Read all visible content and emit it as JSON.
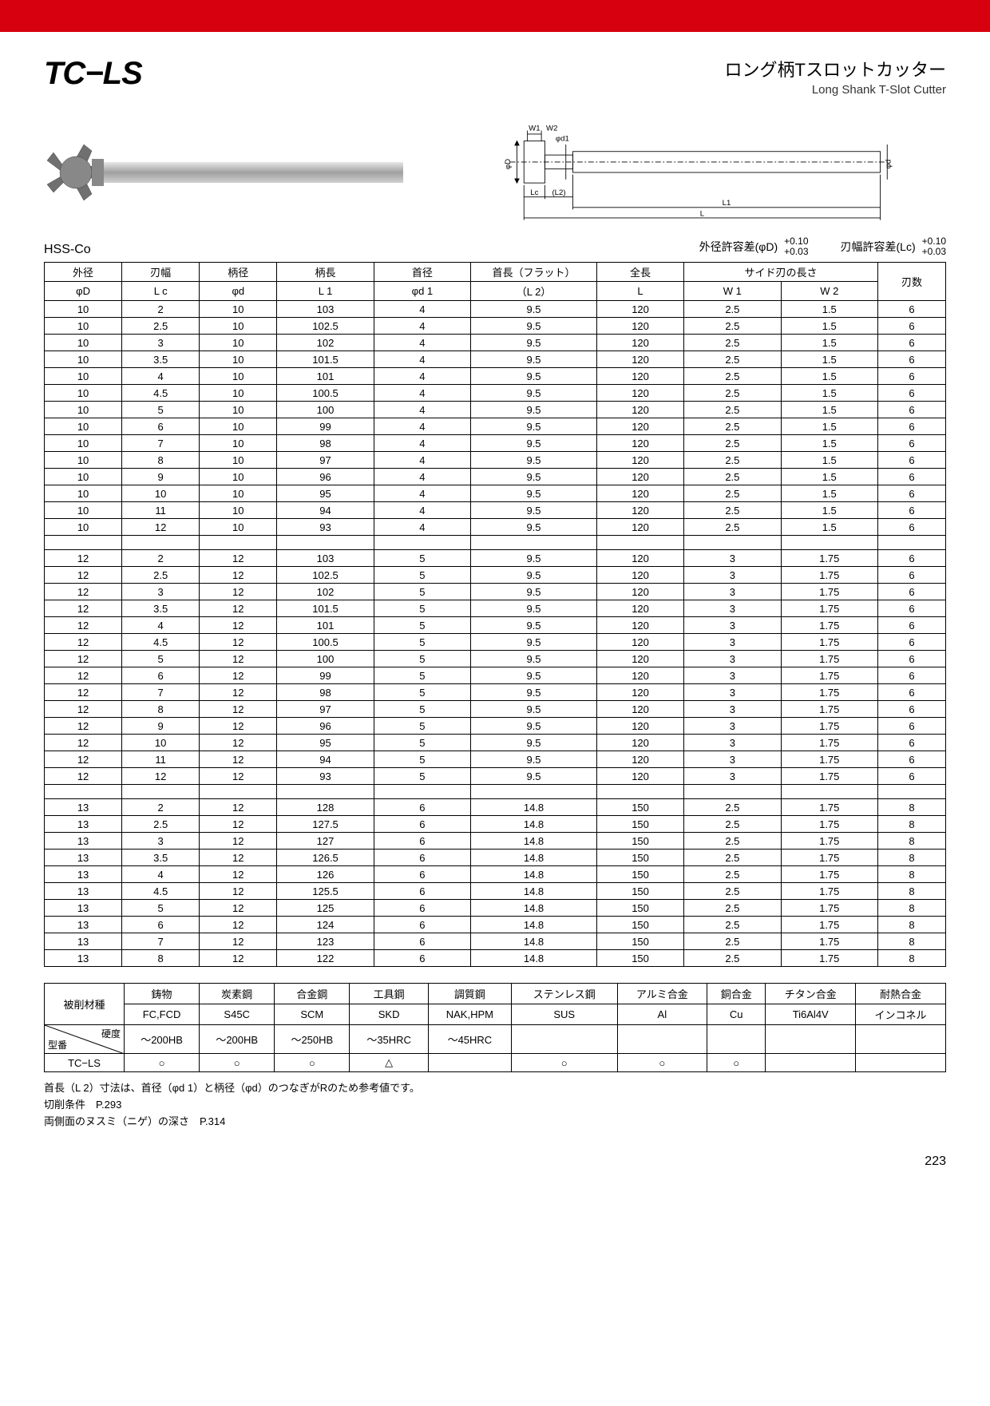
{
  "header": {
    "product_code": "TC−LS",
    "name_jp": "ロング柄Tスロットカッター",
    "name_en": "Long Shank T-Slot Cutter"
  },
  "material_label": "HSS-Co",
  "tolerances": {
    "od_label": "外径許容差(φD)",
    "od_upper": "+0.10",
    "od_lower": "+0.03",
    "lc_label": "刃幅許容差(Lc)",
    "lc_upper": "+0.10",
    "lc_lower": "+0.03"
  },
  "spec_table": {
    "header_row1": [
      "外径",
      "刃幅",
      "柄径",
      "柄長",
      "首径",
      "首長（フラット）",
      "全長",
      "サイド刃の長さ",
      "",
      "刃数"
    ],
    "header_row2": [
      "φD",
      "L c",
      "φd",
      "L 1",
      "φd 1",
      "（L 2）",
      "L",
      "W 1",
      "W 2",
      ""
    ],
    "rows": [
      [
        "10",
        "2",
        "10",
        "103",
        "4",
        "9.5",
        "120",
        "2.5",
        "1.5",
        "6"
      ],
      [
        "10",
        "2.5",
        "10",
        "102.5",
        "4",
        "9.5",
        "120",
        "2.5",
        "1.5",
        "6"
      ],
      [
        "10",
        "3",
        "10",
        "102",
        "4",
        "9.5",
        "120",
        "2.5",
        "1.5",
        "6"
      ],
      [
        "10",
        "3.5",
        "10",
        "101.5",
        "4",
        "9.5",
        "120",
        "2.5",
        "1.5",
        "6"
      ],
      [
        "10",
        "4",
        "10",
        "101",
        "4",
        "9.5",
        "120",
        "2.5",
        "1.5",
        "6"
      ],
      [
        "10",
        "4.5",
        "10",
        "100.5",
        "4",
        "9.5",
        "120",
        "2.5",
        "1.5",
        "6"
      ],
      [
        "10",
        "5",
        "10",
        "100",
        "4",
        "9.5",
        "120",
        "2.5",
        "1.5",
        "6"
      ],
      [
        "10",
        "6",
        "10",
        "99",
        "4",
        "9.5",
        "120",
        "2.5",
        "1.5",
        "6"
      ],
      [
        "10",
        "7",
        "10",
        "98",
        "4",
        "9.5",
        "120",
        "2.5",
        "1.5",
        "6"
      ],
      [
        "10",
        "8",
        "10",
        "97",
        "4",
        "9.5",
        "120",
        "2.5",
        "1.5",
        "6"
      ],
      [
        "10",
        "9",
        "10",
        "96",
        "4",
        "9.5",
        "120",
        "2.5",
        "1.5",
        "6"
      ],
      [
        "10",
        "10",
        "10",
        "95",
        "4",
        "9.5",
        "120",
        "2.5",
        "1.5",
        "6"
      ],
      [
        "10",
        "11",
        "10",
        "94",
        "4",
        "9.5",
        "120",
        "2.5",
        "1.5",
        "6"
      ],
      [
        "10",
        "12",
        "10",
        "93",
        "4",
        "9.5",
        "120",
        "2.5",
        "1.5",
        "6"
      ],
      [],
      [
        "12",
        "2",
        "12",
        "103",
        "5",
        "9.5",
        "120",
        "3",
        "1.75",
        "6"
      ],
      [
        "12",
        "2.5",
        "12",
        "102.5",
        "5",
        "9.5",
        "120",
        "3",
        "1.75",
        "6"
      ],
      [
        "12",
        "3",
        "12",
        "102",
        "5",
        "9.5",
        "120",
        "3",
        "1.75",
        "6"
      ],
      [
        "12",
        "3.5",
        "12",
        "101.5",
        "5",
        "9.5",
        "120",
        "3",
        "1.75",
        "6"
      ],
      [
        "12",
        "4",
        "12",
        "101",
        "5",
        "9.5",
        "120",
        "3",
        "1.75",
        "6"
      ],
      [
        "12",
        "4.5",
        "12",
        "100.5",
        "5",
        "9.5",
        "120",
        "3",
        "1.75",
        "6"
      ],
      [
        "12",
        "5",
        "12",
        "100",
        "5",
        "9.5",
        "120",
        "3",
        "1.75",
        "6"
      ],
      [
        "12",
        "6",
        "12",
        "99",
        "5",
        "9.5",
        "120",
        "3",
        "1.75",
        "6"
      ],
      [
        "12",
        "7",
        "12",
        "98",
        "5",
        "9.5",
        "120",
        "3",
        "1.75",
        "6"
      ],
      [
        "12",
        "8",
        "12",
        "97",
        "5",
        "9.5",
        "120",
        "3",
        "1.75",
        "6"
      ],
      [
        "12",
        "9",
        "12",
        "96",
        "5",
        "9.5",
        "120",
        "3",
        "1.75",
        "6"
      ],
      [
        "12",
        "10",
        "12",
        "95",
        "5",
        "9.5",
        "120",
        "3",
        "1.75",
        "6"
      ],
      [
        "12",
        "11",
        "12",
        "94",
        "5",
        "9.5",
        "120",
        "3",
        "1.75",
        "6"
      ],
      [
        "12",
        "12",
        "12",
        "93",
        "5",
        "9.5",
        "120",
        "3",
        "1.75",
        "6"
      ],
      [],
      [
        "13",
        "2",
        "12",
        "128",
        "6",
        "14.8",
        "150",
        "2.5",
        "1.75",
        "8"
      ],
      [
        "13",
        "2.5",
        "12",
        "127.5",
        "6",
        "14.8",
        "150",
        "2.5",
        "1.75",
        "8"
      ],
      [
        "13",
        "3",
        "12",
        "127",
        "6",
        "14.8",
        "150",
        "2.5",
        "1.75",
        "8"
      ],
      [
        "13",
        "3.5",
        "12",
        "126.5",
        "6",
        "14.8",
        "150",
        "2.5",
        "1.75",
        "8"
      ],
      [
        "13",
        "4",
        "12",
        "126",
        "6",
        "14.8",
        "150",
        "2.5",
        "1.75",
        "8"
      ],
      [
        "13",
        "4.5",
        "12",
        "125.5",
        "6",
        "14.8",
        "150",
        "2.5",
        "1.75",
        "8"
      ],
      [
        "13",
        "5",
        "12",
        "125",
        "6",
        "14.8",
        "150",
        "2.5",
        "1.75",
        "8"
      ],
      [
        "13",
        "6",
        "12",
        "124",
        "6",
        "14.8",
        "150",
        "2.5",
        "1.75",
        "8"
      ],
      [
        "13",
        "7",
        "12",
        "123",
        "6",
        "14.8",
        "150",
        "2.5",
        "1.75",
        "8"
      ],
      [
        "13",
        "8",
        "12",
        "122",
        "6",
        "14.8",
        "150",
        "2.5",
        "1.75",
        "8"
      ]
    ],
    "col_widths_pct": [
      8,
      8,
      8,
      10,
      10,
      13,
      9,
      10,
      10,
      7
    ]
  },
  "material_table": {
    "label": "被削材種",
    "hardness_label": "硬度",
    "model_label": "型番",
    "columns_jp": [
      "鋳物",
      "炭素鋼",
      "合金鋼",
      "工具鋼",
      "調質鋼",
      "ステンレス鋼",
      "アルミ合金",
      "銅合金",
      "チタン合金",
      "耐熱合金"
    ],
    "columns_sym": [
      "FC,FCD",
      "S45C",
      "SCM",
      "SKD",
      "NAK,HPM",
      "SUS",
      "Al",
      "Cu",
      "Ti6Al4V",
      "インコネル"
    ],
    "hardness_row": [
      "〜200HB",
      "〜200HB",
      "〜250HB",
      "〜35HRC",
      "〜45HRC",
      "",
      "",
      "",
      "",
      ""
    ],
    "model_name": "TC−LS",
    "marks": [
      "○",
      "○",
      "○",
      "△",
      "",
      "○",
      "○",
      "○",
      "",
      ""
    ]
  },
  "notes": [
    "首長（L 2）寸法は、首径（φd 1）と柄径（φd）のつなぎがRのため参考値です。",
    "切削条件　P.293",
    "両側面のヌスミ（ニゲ）の深さ　P.314"
  ],
  "page_number": "223",
  "colors": {
    "red": "#d7000f",
    "border": "#000000",
    "photo_gray": "#b0b0b0"
  }
}
